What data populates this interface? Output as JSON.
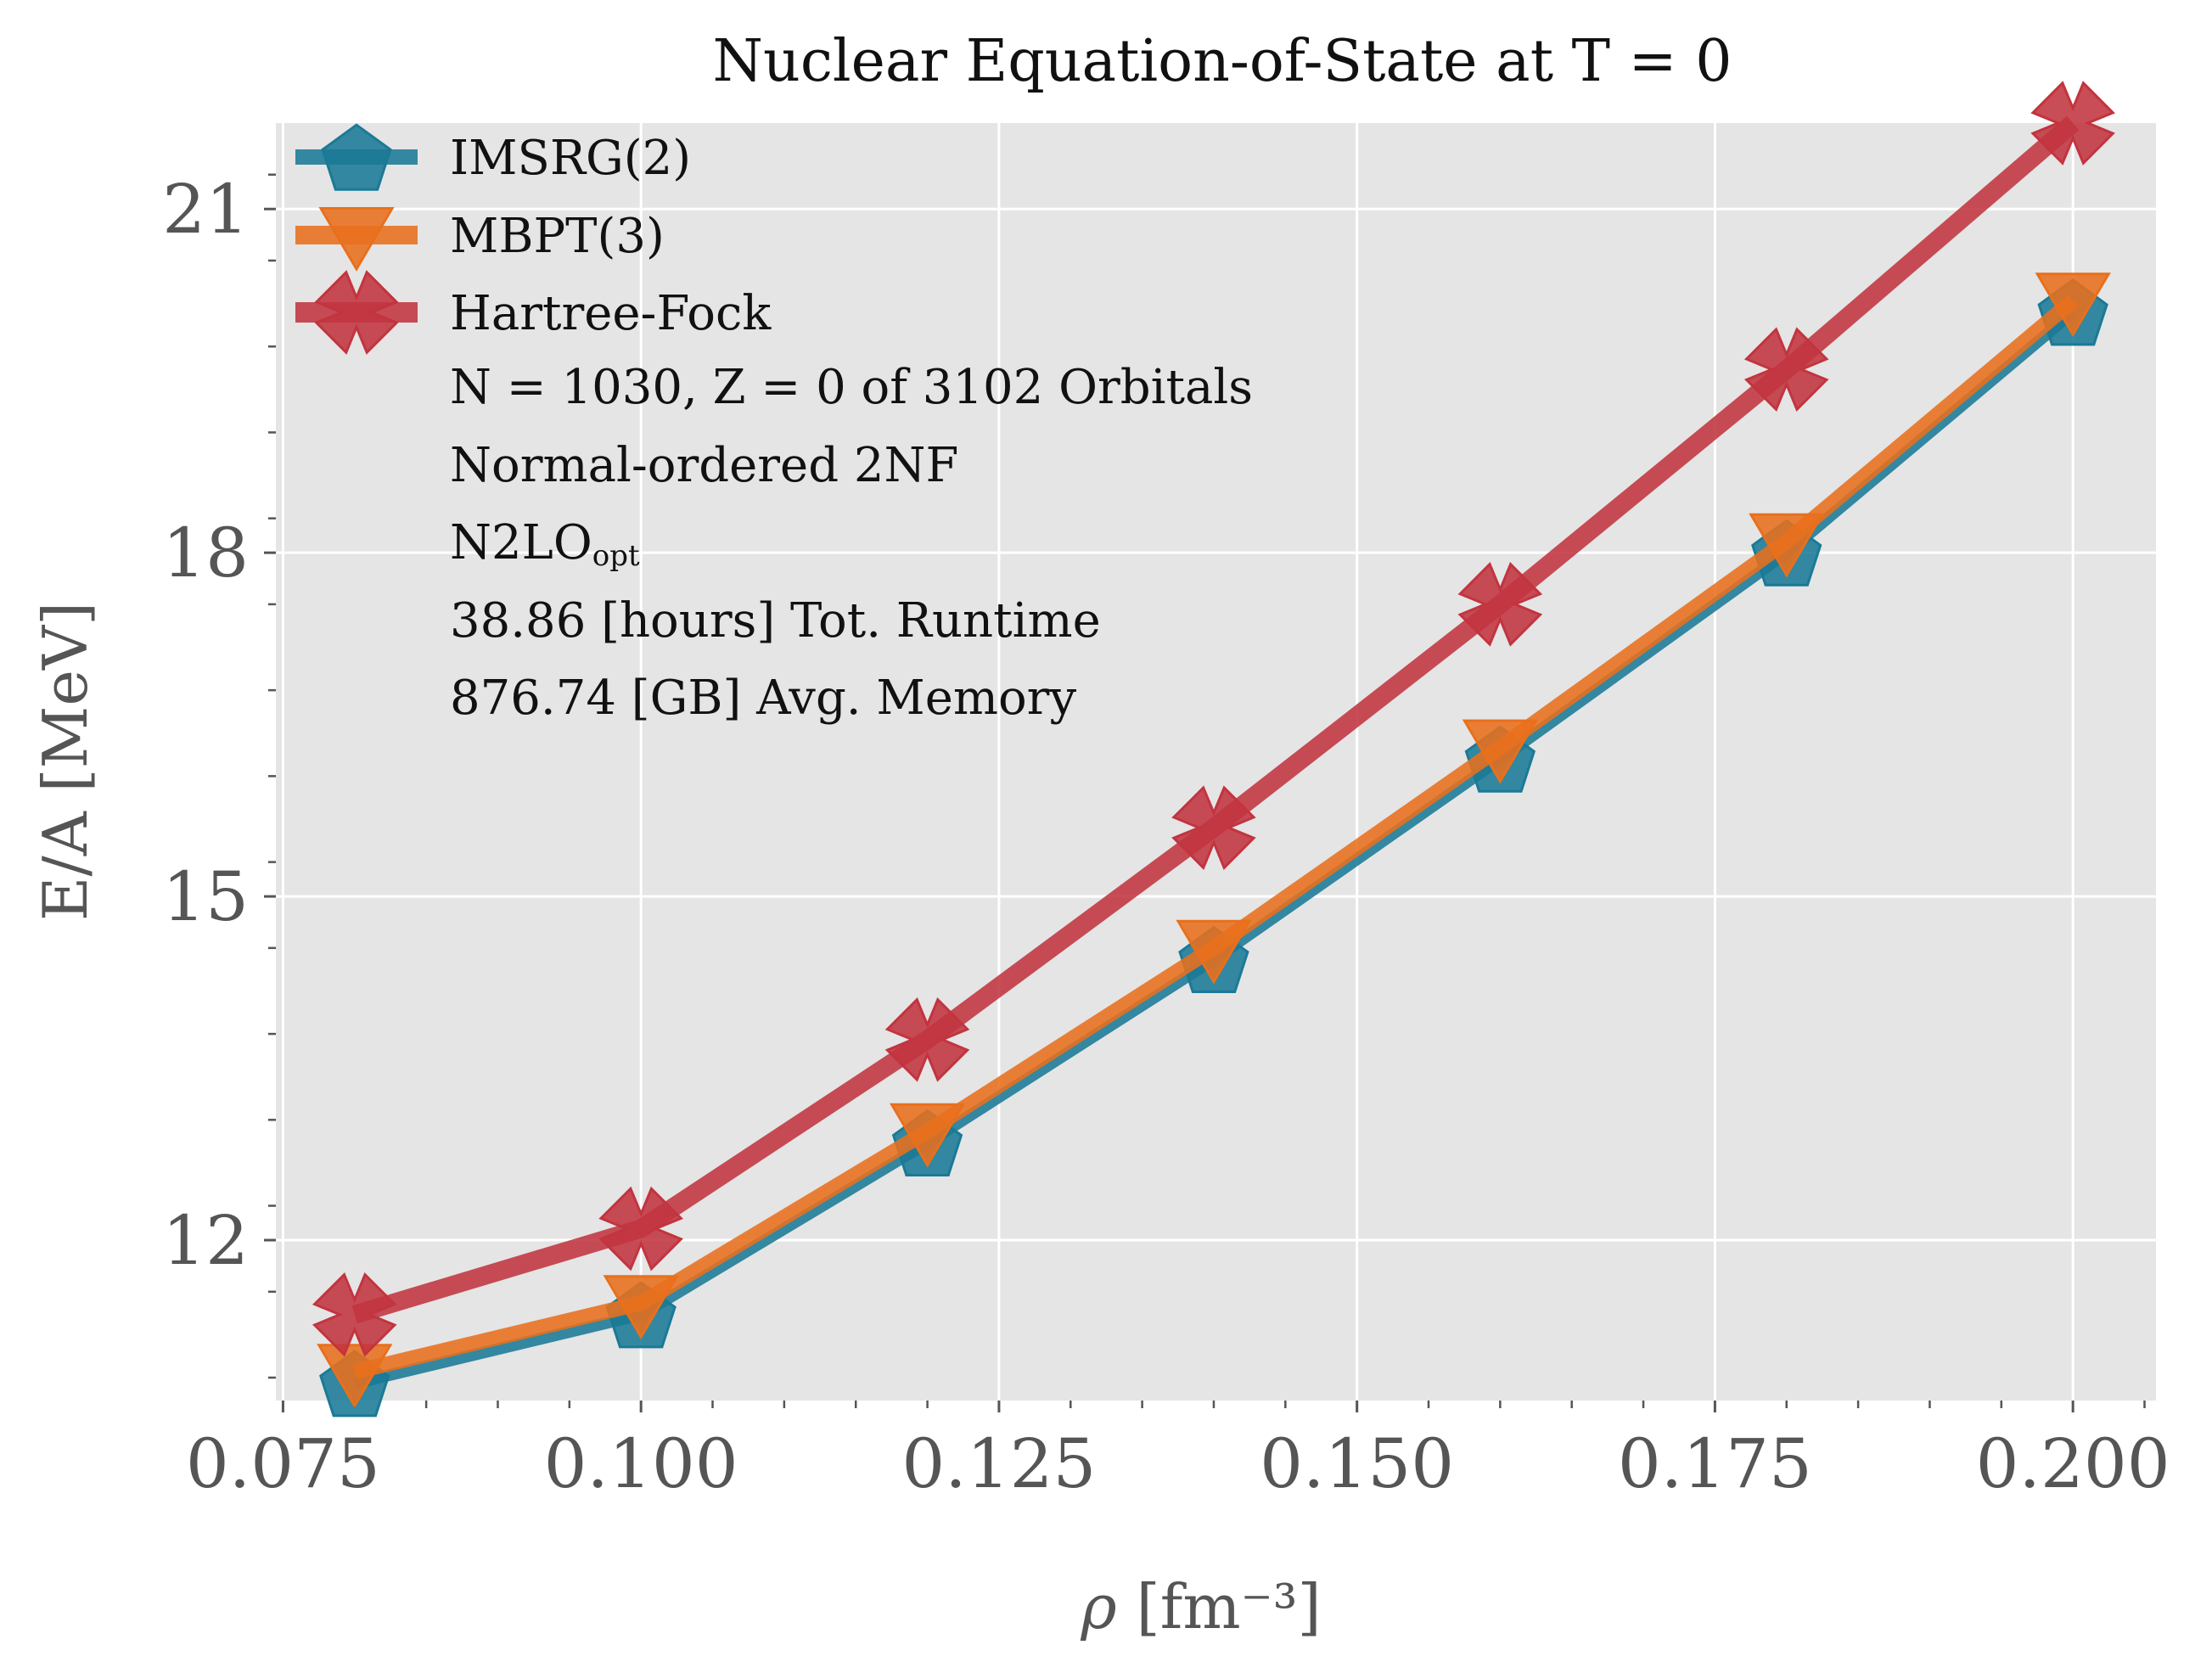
{
  "chart_data": {
    "type": "line",
    "title": "Nuclear Equation-of-State at T = 0",
    "xlabel": "ρ [fm⁻³]",
    "ylabel": "E/A [MeV]",
    "xlim": [
      0.0745,
      0.2058
    ],
    "ylim": [
      10.6,
      21.75
    ],
    "xticks": [
      0.075,
      0.1,
      0.125,
      0.15,
      0.175,
      0.2
    ],
    "xtick_labels": [
      "0.075",
      "0.100",
      "0.125",
      "0.150",
      "0.175",
      "0.200"
    ],
    "yticks": [
      12,
      15,
      18,
      21
    ],
    "ytick_labels": [
      "12",
      "15",
      "18",
      "21"
    ],
    "grid": true,
    "background": "#e5e5e5",
    "legend_position": "top-left",
    "x": [
      0.08,
      0.1,
      0.12,
      0.14,
      0.16,
      0.18,
      0.2
    ],
    "series": [
      {
        "name": "IMSRG(2)",
        "marker": "pentagon",
        "color": "#1a7a96",
        "values": [
          10.75,
          11.35,
          12.85,
          14.45,
          16.2,
          18.0,
          20.1
        ]
      },
      {
        "name": "MBPT(3)",
        "marker": "triangle-down",
        "color": "#e8701c",
        "values": [
          10.85,
          11.45,
          12.95,
          14.55,
          16.3,
          18.1,
          20.2
        ]
      },
      {
        "name": "Hartree-Fock",
        "marker": "x-cross",
        "color": "#c2343f",
        "values": [
          11.35,
          12.1,
          13.75,
          15.6,
          17.55,
          19.6,
          21.75
        ]
      }
    ],
    "annotations": [
      "N = 1030, Z = 0 of 3102 Orbitals",
      "Normal-ordered 2NF",
      "N2LO",
      "38.86 [hours] Tot. Runtime",
      "876.74 [GB] Avg. Memory"
    ],
    "annotation_subscript": "opt"
  }
}
